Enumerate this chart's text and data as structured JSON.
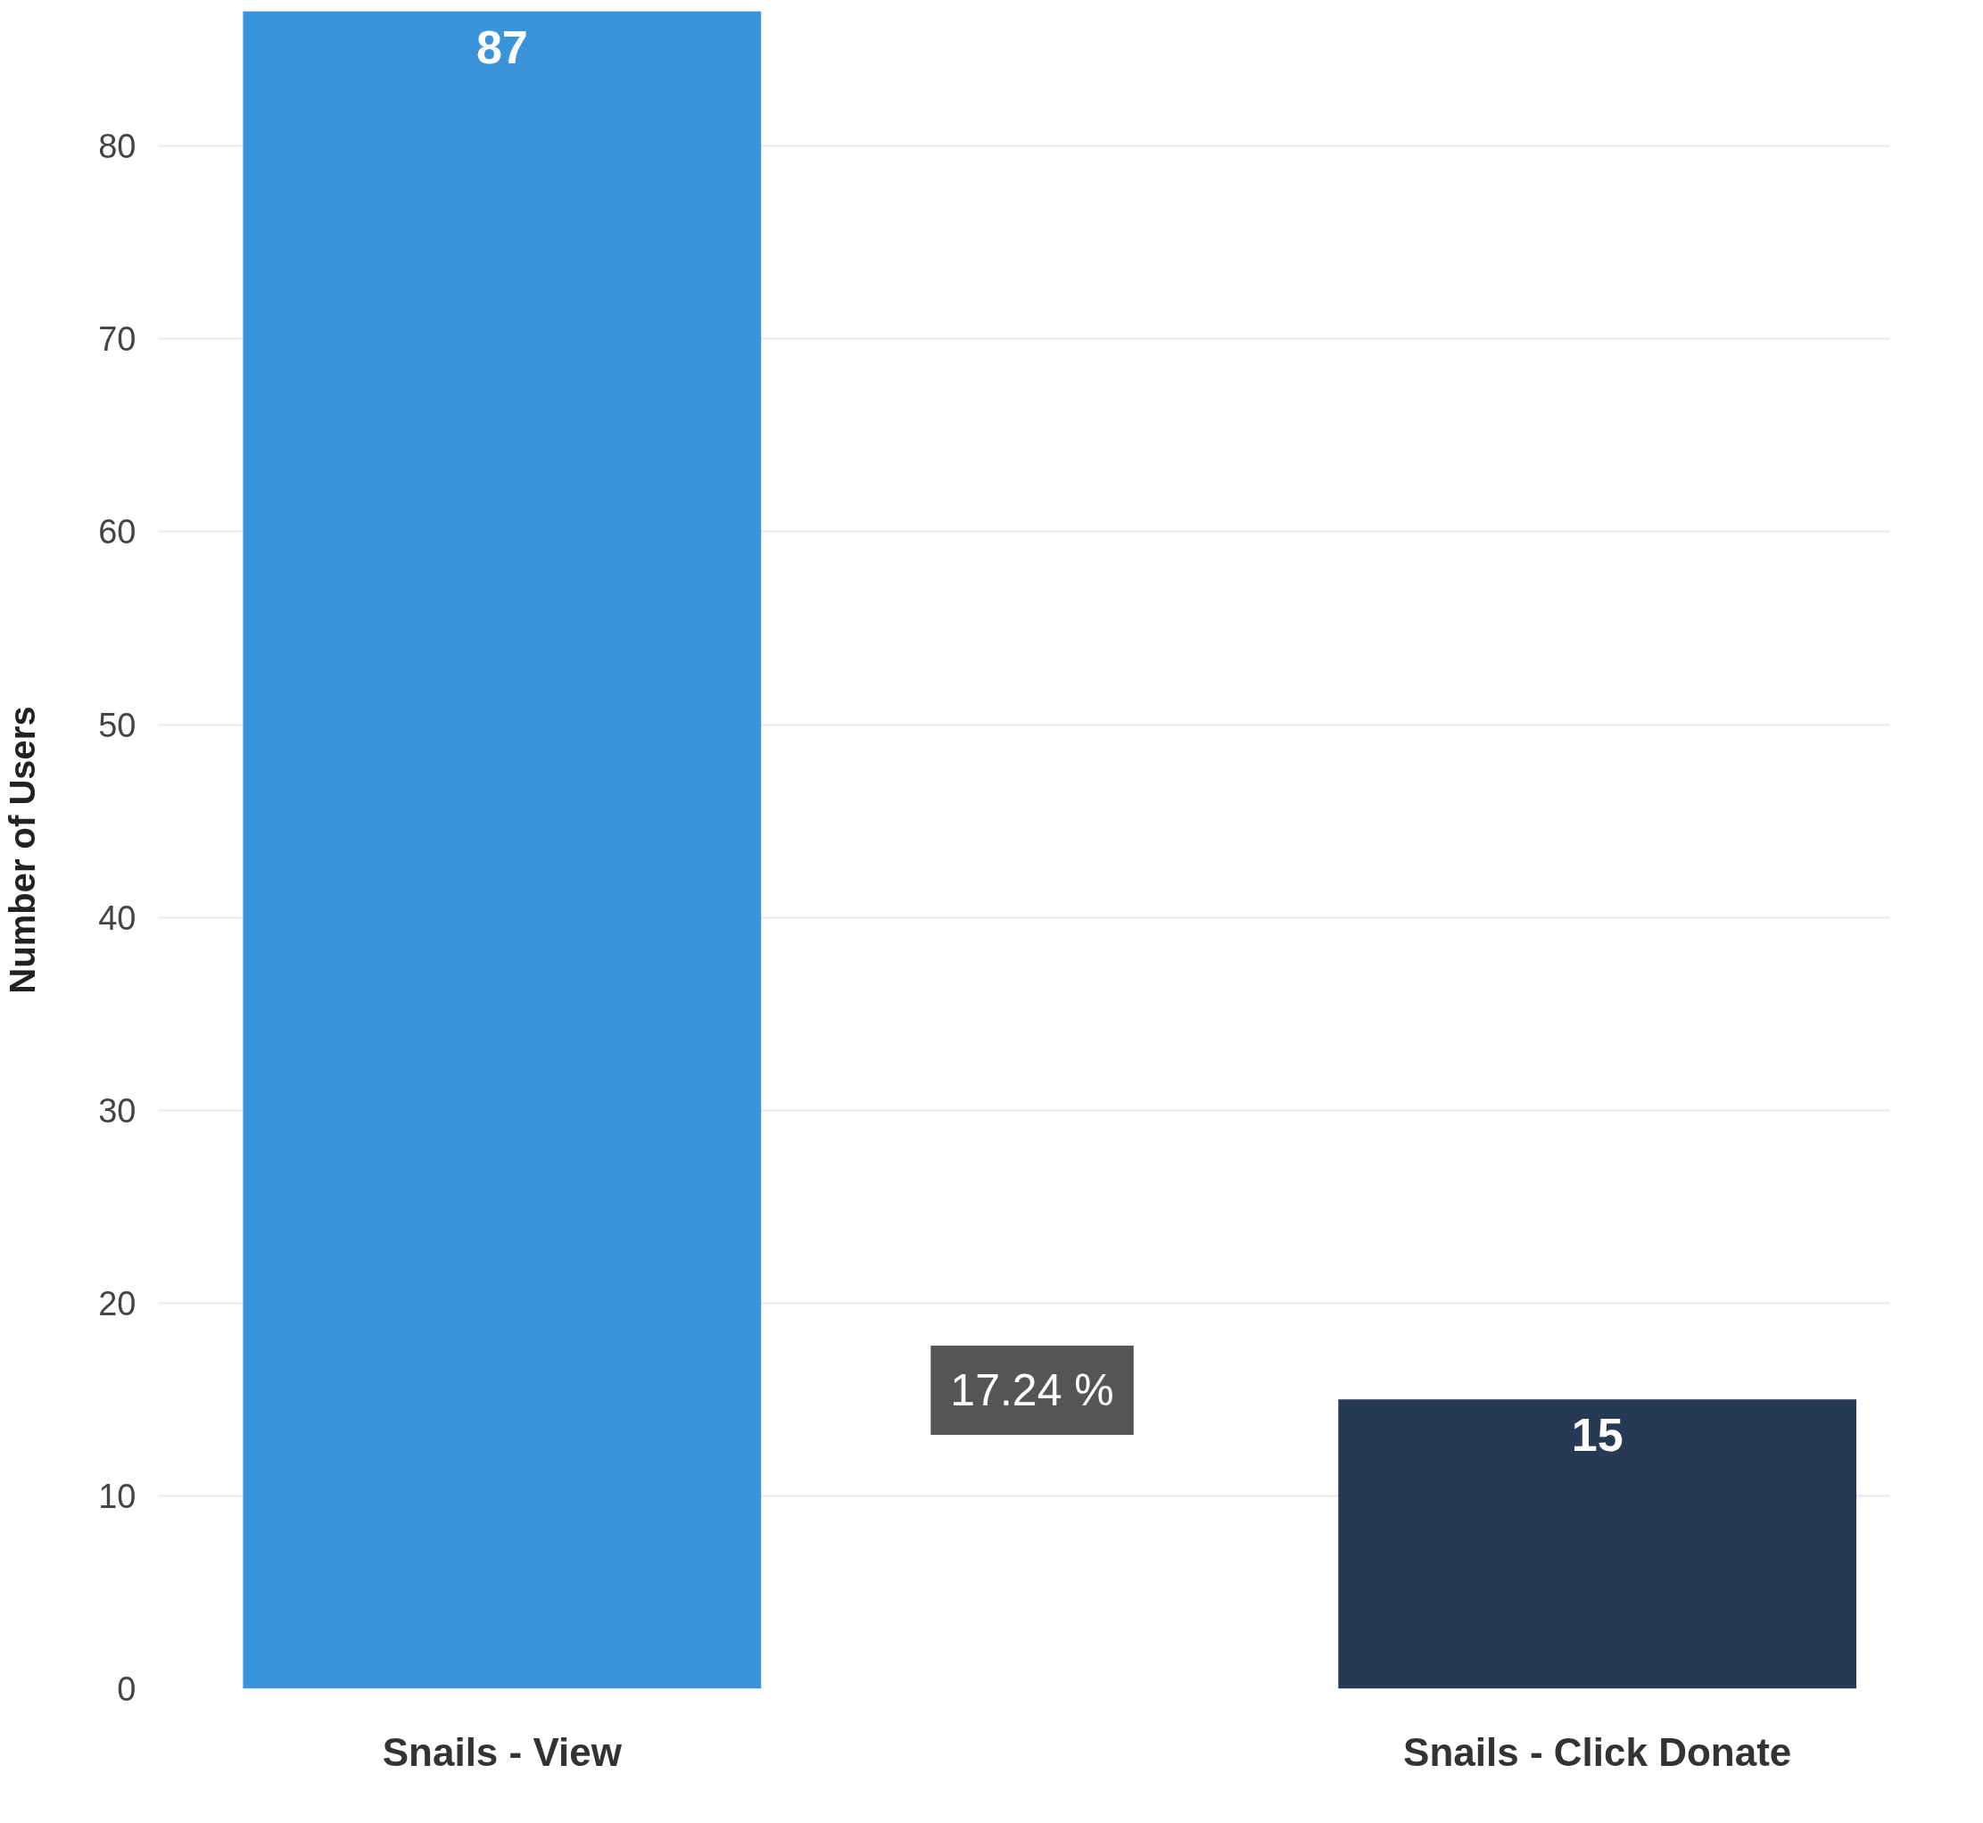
{
  "chart_data": {
    "type": "bar",
    "ylabel": "Number of Users",
    "categories": [
      "Snails - View",
      "Snails - Click Donate"
    ],
    "values": [
      87,
      15
    ],
    "colors": [
      "#3a94dc",
      "#263a56"
    ],
    "data_labels": true,
    "ylim": [
      0,
      87
    ],
    "yticks": [
      0,
      10,
      20,
      30,
      40,
      50,
      60,
      70,
      80
    ],
    "grid": "y",
    "annotations": [
      "17.24 %"
    ]
  }
}
